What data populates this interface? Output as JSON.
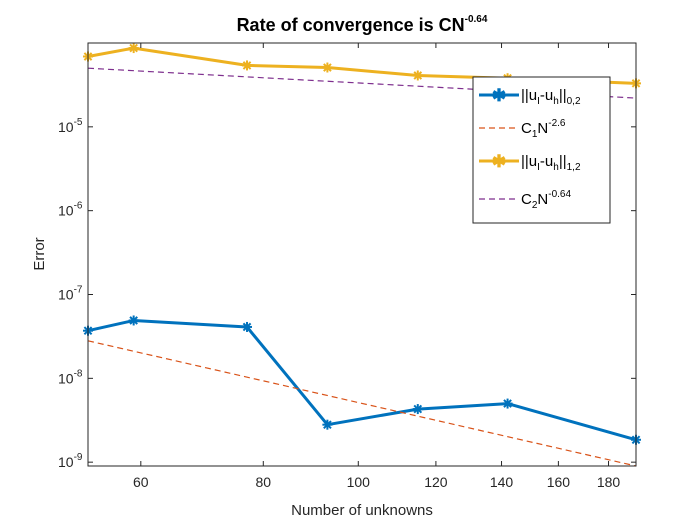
{
  "chart_data": {
    "type": "line",
    "title": {
      "prefix": "Rate of convergence is CN",
      "exponent": "-0.64"
    },
    "xlabel": "Number of unknowns",
    "ylabel": "Error",
    "x_scale": "log",
    "y_scale": "log",
    "xlim": [
      53,
      192
    ],
    "ylim": [
      9e-10,
      0.0001
    ],
    "x_ticks": [
      60,
      80,
      100,
      120,
      140,
      160,
      180
    ],
    "x_tick_labels": [
      "60",
      "80",
      "100",
      "120",
      "140",
      "160",
      "180"
    ],
    "y_ticks": [
      1e-09,
      1e-08,
      1e-07,
      1e-06,
      1e-05
    ],
    "y_tick_labels": [
      {
        "base": "10",
        "exp": "-9"
      },
      {
        "base": "10",
        "exp": "-8"
      },
      {
        "base": "10",
        "exp": "-7"
      },
      {
        "base": "10",
        "exp": "-6"
      },
      {
        "base": "10",
        "exp": "-5"
      }
    ],
    "grid": false,
    "legend_position": "top-right",
    "series": [
      {
        "name": "||u_I-u_h||_{0,2}",
        "legend": {
          "a": "||u",
          "a_sub": "I",
          "b": "-u",
          "b_sub": "h",
          "c": "||",
          "c_sub": "0,2"
        },
        "color": "#0072BD",
        "style": "solid",
        "marker": "asterisk",
        "x": [
          53,
          59,
          77,
          93,
          115,
          142,
          192
        ],
        "y": [
          3.7e-08,
          4.9e-08,
          4.1e-08,
          2.8e-09,
          4.3e-09,
          5e-09,
          1.85e-09
        ]
      },
      {
        "name": "C_1N^{-2.6}",
        "legend": {
          "a": "C",
          "a_sub": "1",
          "b": "N",
          "b_sup": "-2.6"
        },
        "color": "#D95319",
        "style": "dashed",
        "marker": "none",
        "x": [
          53,
          192
        ],
        "y": [
          2.8e-08,
          9e-10
        ]
      },
      {
        "name": "||u_I-u_h||_{1,2}",
        "legend": {
          "a": "||u",
          "a_sub": "I",
          "b": "-u",
          "b_sub": "h",
          "c": "||",
          "c_sub": "1,2"
        },
        "color": "#EDB120",
        "style": "solid",
        "marker": "asterisk",
        "x": [
          53,
          59,
          77,
          93,
          115,
          142,
          192
        ],
        "y": [
          6.9e-05,
          8.7e-05,
          5.4e-05,
          5.1e-05,
          4.1e-05,
          3.8e-05,
          3.3e-05
        ]
      },
      {
        "name": "C_2N^{-0.64}",
        "legend": {
          "a": "C",
          "a_sub": "2",
          "b": "N",
          "b_sup": "-0.64"
        },
        "color": "#7E2F8E",
        "style": "dashed",
        "marker": "none",
        "x": [
          53,
          192
        ],
        "y": [
          5e-05,
          2.2e-05
        ]
      }
    ]
  }
}
